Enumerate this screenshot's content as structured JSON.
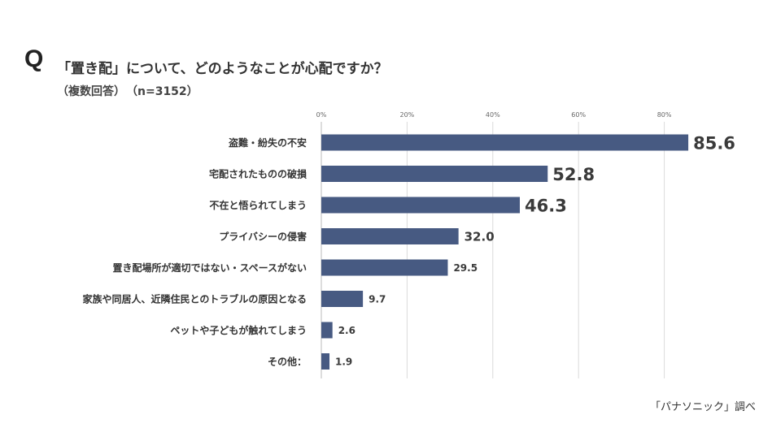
{
  "header": {
    "q_mark": "Q",
    "title": "「置き配」について、どのようなことが心配ですか？",
    "note": "（複数回答）",
    "sample": "（n=3152）"
  },
  "chart_data": {
    "type": "bar",
    "orientation": "horizontal",
    "xlim": [
      0,
      100
    ],
    "ticks": [
      0,
      20,
      40,
      60,
      80
    ],
    "tick_labels": [
      "0%",
      "20%",
      "40%",
      "60%",
      "80%"
    ],
    "categories": [
      "盗難・紛失の不安",
      "宅配されたものの破損",
      "不在と悟られてしまう",
      "プライバシーの侵害",
      "置き配場所が適切ではない・スペースがない",
      "家族や同居人、近隣住民とのトラブルの原因となる",
      "ペットや子どもが触れてしまう",
      "その他："
    ],
    "values": [
      85.6,
      52.8,
      46.3,
      32.0,
      29.5,
      9.7,
      2.6,
      1.9
    ],
    "value_labels": [
      "85.6",
      "52.8",
      "46.3",
      "32.0",
      "29.5",
      "9.7",
      "2.6",
      "1.9"
    ],
    "bar_color": "#475a82",
    "grid": true
  },
  "footer": {
    "source": "「パナソニック」調べ"
  }
}
